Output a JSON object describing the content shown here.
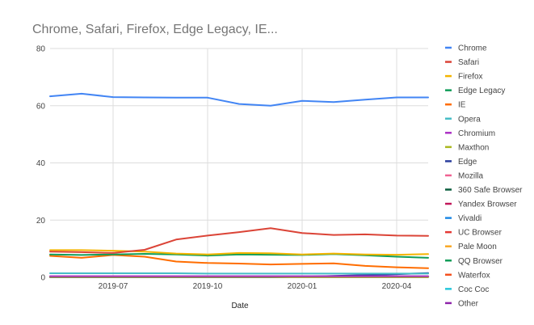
{
  "chart_data": {
    "type": "line",
    "title": "Chrome, Safari, Firefox, Edge Legacy, IE...",
    "xlabel": "Date",
    "ylabel": "",
    "ylim": [
      0,
      80
    ],
    "yticks": [
      "0",
      "20",
      "40",
      "60",
      "80"
    ],
    "x": [
      "2019-05",
      "2019-06",
      "2019-07",
      "2019-08",
      "2019-09",
      "2019-10",
      "2019-11",
      "2019-12",
      "2020-01",
      "2020-02",
      "2020-03",
      "2020-04",
      "2020-05"
    ],
    "xticks": [
      {
        "date": "2019-07",
        "label": "2019-07"
      },
      {
        "date": "2019-10",
        "label": "2019-10"
      },
      {
        "date": "2020-01",
        "label": "2020-01"
      },
      {
        "date": "2020-04",
        "label": "2020-04"
      }
    ],
    "grid": true,
    "legend_position": "right",
    "series": [
      {
        "name": "Chrome",
        "color": "#4285f4",
        "values": [
          63.3,
          64.2,
          63.0,
          62.9,
          62.8,
          62.8,
          60.6,
          60.0,
          61.7,
          61.3,
          62.1,
          62.9,
          62.9
        ]
      },
      {
        "name": "Safari",
        "color": "#db4437",
        "values": [
          9.0,
          8.8,
          8.5,
          9.6,
          13.2,
          14.6,
          15.8,
          17.2,
          15.5,
          14.8,
          15.0,
          14.6,
          14.5
        ]
      },
      {
        "name": "Firefox",
        "color": "#f4b400",
        "values": [
          9.5,
          9.5,
          9.3,
          9.0,
          8.3,
          8.0,
          8.5,
          8.4,
          8.0,
          8.3,
          8.0,
          7.9,
          8.1
        ]
      },
      {
        "name": "Edge Legacy",
        "color": "#0f9d58",
        "values": [
          8.0,
          7.8,
          8.0,
          8.2,
          8.0,
          7.6,
          8.0,
          7.9,
          7.8,
          8.1,
          7.7,
          7.2,
          6.8
        ]
      },
      {
        "name": "IE",
        "color": "#ff6d00",
        "values": [
          7.5,
          6.8,
          7.8,
          7.2,
          5.5,
          5.0,
          4.8,
          4.5,
          4.7,
          4.9,
          4.0,
          3.5,
          3.2
        ]
      },
      {
        "name": "Opera",
        "color": "#46bdc6",
        "values": [
          1.4,
          1.4,
          1.4,
          1.4,
          1.4,
          1.3,
          1.3,
          1.3,
          1.3,
          1.3,
          1.3,
          1.3,
          1.3
        ]
      },
      {
        "name": "Chromium",
        "color": "#ab30c4",
        "values": [
          0.4,
          0.4,
          0.4,
          0.4,
          0.4,
          0.4,
          0.4,
          0.4,
          0.4,
          0.4,
          0.4,
          0.4,
          0.4
        ]
      },
      {
        "name": "Maxthon",
        "color": "#abb820",
        "values": [
          0.1,
          0.1,
          0.1,
          0.1,
          0.1,
          0.1,
          0.1,
          0.1,
          0.1,
          0.1,
          0.1,
          0.1,
          0.1
        ]
      },
      {
        "name": "Edge",
        "color": "#2a3d9e",
        "values": [
          0,
          0,
          0,
          0,
          0,
          0,
          0,
          0,
          0.2,
          0.5,
          0.8,
          1.1,
          1.5
        ]
      },
      {
        "name": "Mozilla",
        "color": "#f06292",
        "values": [
          0.1,
          0.1,
          0.1,
          0.1,
          0.1,
          0.1,
          0.1,
          0.1,
          0.1,
          0.1,
          0.1,
          0.1,
          0.1
        ]
      },
      {
        "name": "360 Safe Browser",
        "color": "#0b5e3e",
        "values": [
          0.1,
          0.1,
          0.1,
          0.1,
          0.1,
          0.1,
          0.1,
          0.1,
          0.1,
          0.1,
          0.1,
          0.1,
          0.1
        ]
      },
      {
        "name": "Yandex Browser",
        "color": "#c2185b",
        "values": [
          0.2,
          0.2,
          0.2,
          0.2,
          0.2,
          0.2,
          0.2,
          0.2,
          0.2,
          0.2,
          0.2,
          0.2,
          0.2
        ]
      },
      {
        "name": "Vivaldi",
        "color": "#1e88e5",
        "values": [
          0.1,
          0.1,
          0.1,
          0.1,
          0.1,
          0.1,
          0.1,
          0.1,
          0.1,
          0.1,
          0.1,
          0.1,
          0.1
        ]
      },
      {
        "name": "UC Browser",
        "color": "#e53935",
        "values": [
          0.1,
          0.1,
          0.1,
          0.1,
          0.1,
          0.1,
          0.1,
          0.1,
          0.1,
          0.1,
          0.1,
          0.1,
          0.1
        ]
      },
      {
        "name": "Pale Moon",
        "color": "#f9a825",
        "values": [
          0.1,
          0.1,
          0.1,
          0.1,
          0.1,
          0.1,
          0.1,
          0.1,
          0.1,
          0.1,
          0.1,
          0.1,
          0.1
        ]
      },
      {
        "name": "QQ Browser",
        "color": "#0f9d58",
        "values": [
          0.1,
          0.1,
          0.1,
          0.1,
          0.1,
          0.1,
          0.1,
          0.1,
          0.1,
          0.1,
          0.1,
          0.1,
          0.1
        ]
      },
      {
        "name": "Waterfox",
        "color": "#f4511e",
        "values": [
          0.1,
          0.1,
          0.1,
          0.1,
          0.1,
          0.1,
          0.1,
          0.1,
          0.1,
          0.1,
          0.1,
          0.1,
          0.1
        ]
      },
      {
        "name": "Coc Coc",
        "color": "#26c6da",
        "values": [
          0.1,
          0.1,
          0.1,
          0.1,
          0.1,
          0.1,
          0.1,
          0.1,
          0.1,
          0.1,
          0.1,
          0.1,
          0.1
        ]
      },
      {
        "name": "Other",
        "color": "#8e24aa",
        "values": [
          0.3,
          0.3,
          0.3,
          0.3,
          0.3,
          0.3,
          0.3,
          0.3,
          0.3,
          0.3,
          0.3,
          0.3,
          0.3
        ]
      }
    ]
  }
}
